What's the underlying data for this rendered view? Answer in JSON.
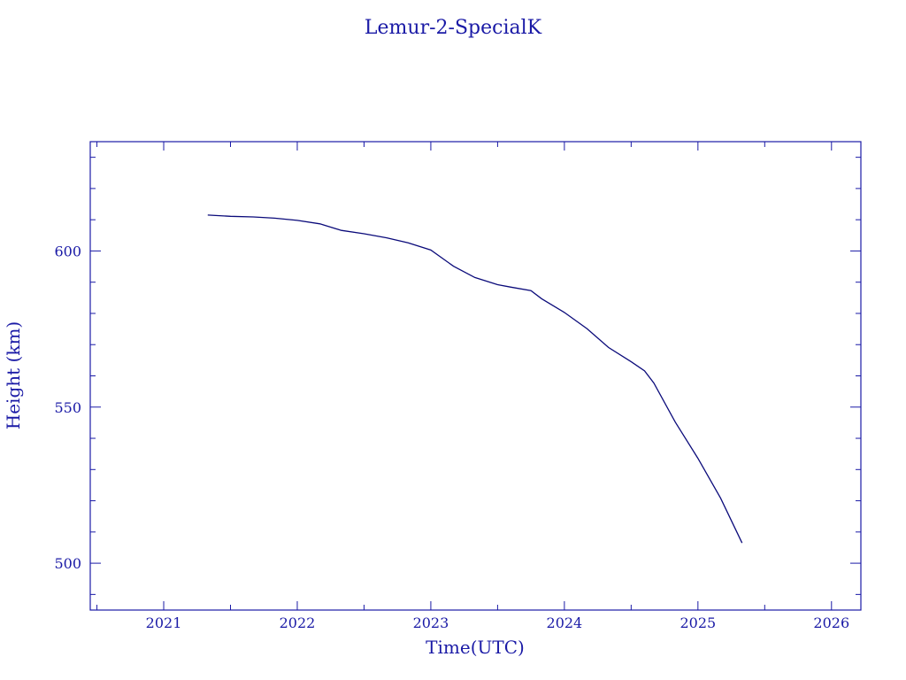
{
  "colors": {
    "ink": "#1a1aa6",
    "line": "#0a0a7a",
    "background": "#ffffff"
  },
  "chart_data": {
    "type": "line",
    "title": "Lemur-2-SpecialK",
    "xlabel": "Time(UTC)",
    "ylabel": "Height (km)",
    "xlim": [
      2020.45,
      2026.22
    ],
    "ylim": [
      485,
      635
    ],
    "xticks": [
      2021,
      2022,
      2023,
      2024,
      2025,
      2026
    ],
    "xtick_labels": [
      "2021",
      "2022",
      "2023",
      "2024",
      "2025",
      "2026"
    ],
    "yticks": [
      500,
      550,
      600
    ],
    "ytick_labels": [
      "500",
      "550",
      "600"
    ],
    "grid": false,
    "legend": "none",
    "series": [
      {
        "x": [
          2021.33,
          2021.5,
          2021.67,
          2021.83,
          2022.0,
          2022.17,
          2022.33,
          2022.5,
          2022.67,
          2022.83,
          2023.0,
          2023.17,
          2023.33,
          2023.5,
          2023.6,
          2023.75,
          2023.83,
          2024.0,
          2024.17,
          2024.33,
          2024.5,
          2024.6,
          2024.67,
          2024.83,
          2025.0,
          2025.17,
          2025.33
        ],
        "y": [
          611.5,
          611.1,
          610.9,
          610.5,
          609.8,
          608.7,
          606.6,
          605.5,
          604.2,
          602.6,
          600.3,
          595.1,
          591.5,
          589.2,
          588.4,
          587.3,
          584.7,
          580.3,
          575.1,
          569.1,
          564.5,
          561.6,
          557.7,
          545.2,
          533.6,
          520.8,
          506.5
        ]
      }
    ]
  }
}
